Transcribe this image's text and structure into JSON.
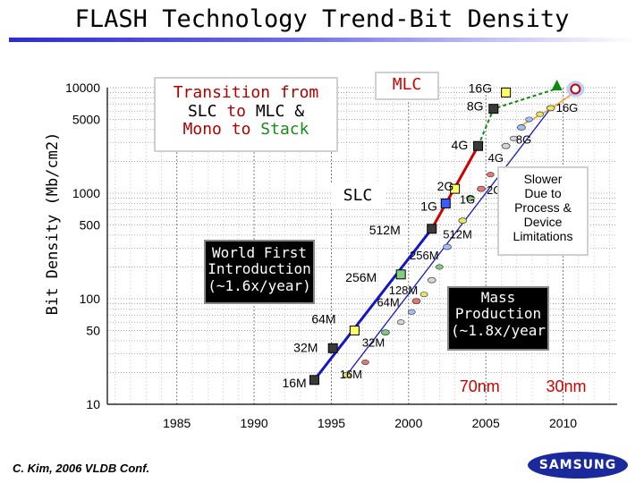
{
  "title": "FLASH Technology Trend-Bit Density",
  "citation": "C. Kim, 2006 VLDB Conf.",
  "logo": "SAMSUNG",
  "annotations": {
    "transition": [
      "Transition from",
      "SLC to MLC &",
      "Mono to Stack"
    ],
    "transition_colors": [
      "#b00000",
      "#000000",
      "#b00000",
      "#000000",
      "#000000",
      "#b00000"
    ],
    "mlc": "MLC",
    "slc": "SLC",
    "first_intro": [
      "World First",
      "Introduction",
      "(~1.6x/year)"
    ],
    "mass_production": [
      "Mass",
      "Production",
      "(~1.8x/year"
    ],
    "slower": [
      "Slower",
      "Due to",
      "Process &",
      "Device",
      "Limitations"
    ]
  },
  "colors": {
    "slc_trend": "#1515c8",
    "mlc_trend": "#d00000",
    "mass_trend": "#1515c8",
    "future_trend": "#0e8a0e",
    "marker_fill": "#1a1a1a",
    "node_label": "#d00000"
  },
  "chart_data": {
    "type": "scatter",
    "title": "FLASH Technology Trend-Bit Density",
    "ylabel": "Bit Density (Mb/cm2)",
    "xlabel": "",
    "x_ticks": [
      1985,
      1990,
      1995,
      2000,
      2005,
      2010
    ],
    "y_ticks": [
      10,
      50,
      100,
      500,
      1000,
      5000,
      10000
    ],
    "y_scale": "log",
    "xlim": [
      1980.5,
      2013.5
    ],
    "ylim": [
      10,
      10000
    ],
    "grid": true,
    "node_labels": [
      "70nm",
      "30nm"
    ],
    "node_label_x": [
      2004.6,
      2010.2
    ],
    "series": [
      {
        "role": "first_introduction",
        "marker": "square",
        "points": [
          {
            "label": "16M",
            "x": 1993.9,
            "y": 17
          },
          {
            "label": "32M",
            "x": 1995.1,
            "y": 34
          },
          {
            "label": "64M",
            "x": 1996.5,
            "y": 50
          },
          {
            "label": "256M",
            "x": 1999.5,
            "y": 170
          },
          {
            "label": "512M",
            "x": 2001.5,
            "y": 460
          },
          {
            "label": "1G",
            "x": 2002.4,
            "y": 800
          },
          {
            "label": "2G",
            "x": 2003.0,
            "y": 1100
          },
          {
            "label": "4G",
            "x": 2004.5,
            "y": 2800
          },
          {
            "label": "8G",
            "x": 2005.5,
            "y": 6300
          },
          {
            "label": "16G",
            "x": 2006.3,
            "y": 9000
          }
        ]
      },
      {
        "role": "mass_production",
        "marker": "ellipse",
        "points": [
          {
            "label": "16M",
            "x": 1996.0,
            "y": 19
          },
          {
            "label": "32M",
            "x": 1998.5,
            "y": 48
          },
          {
            "label": "64M",
            "x": 2000.5,
            "y": 95
          },
          {
            "label": "128M",
            "x": 2001.5,
            "y": 150
          },
          {
            "label": "256M",
            "x": 2002.5,
            "y": 310
          },
          {
            "label": "512M",
            "x": 2003.5,
            "y": 550
          },
          {
            "label": "1G",
            "x": 2004.0,
            "y": 900
          },
          {
            "label": "2G",
            "x": 2004.7,
            "y": 1100
          },
          {
            "label": "4G",
            "x": 2006.3,
            "y": 2800
          },
          {
            "label": "8G",
            "x": 2007.3,
            "y": 4200
          },
          {
            "label": "16G",
            "x": 2009.2,
            "y": 6400
          }
        ]
      }
    ]
  }
}
